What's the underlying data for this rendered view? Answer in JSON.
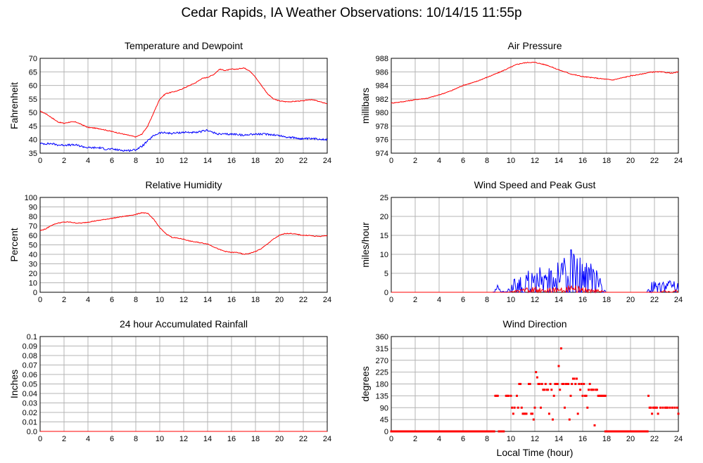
{
  "page": {
    "title": "Cedar Rapids, IA Weather Observations: 10/14/15 11:55p",
    "xlabel_bottom": "Local Time (hour)"
  },
  "colors": {
    "red": "#ff0000",
    "blue": "#0000ff",
    "grid": "#b4b4b4"
  },
  "chart_data": [
    {
      "id": "temp",
      "type": "line",
      "title": "Temperature and Dewpoint",
      "xlabel": "",
      "ylabel": "Fahrenheit",
      "xlim": [
        0,
        24
      ],
      "ylim": [
        35,
        70
      ],
      "xticks": [
        0,
        2,
        4,
        6,
        8,
        10,
        12,
        14,
        16,
        18,
        20,
        22,
        24
      ],
      "yticks": [
        "35",
        "40",
        "45",
        "50",
        "55",
        "60",
        "65",
        "70"
      ],
      "grid": true,
      "series": [
        {
          "color": "#ff0000",
          "noise": 0.15,
          "x": [
            0,
            0.5,
            1,
            1.5,
            2,
            2.5,
            3,
            3.5,
            4,
            4.5,
            5,
            5.5,
            6,
            6.5,
            7,
            7.5,
            8,
            8.5,
            9,
            9.5,
            10,
            10.5,
            11,
            11.5,
            12,
            12.5,
            13,
            13.5,
            14,
            14.5,
            15,
            15.5,
            16,
            16.5,
            17,
            17.5,
            18,
            18.5,
            19,
            19.5,
            20,
            20.5,
            21,
            21.5,
            22,
            22.5,
            23,
            23.5,
            24
          ],
          "values": [
            50.5,
            49.5,
            48,
            46.5,
            46,
            46.5,
            46.5,
            45.5,
            44.5,
            44.3,
            44,
            43.5,
            43,
            42.5,
            42,
            41.5,
            41,
            42,
            45,
            50,
            55,
            57,
            57.5,
            58,
            59,
            60,
            61,
            62.5,
            63,
            64,
            66,
            65.5,
            66,
            66,
            66.5,
            65.5,
            63,
            60,
            57,
            55,
            54.3,
            54,
            54,
            54.2,
            54.3,
            54.8,
            54.5,
            53.8,
            53.3
          ]
        },
        {
          "color": "#0000ff",
          "noise": 0.35,
          "x": [
            0,
            0.5,
            1,
            1.5,
            2,
            2.5,
            3,
            3.5,
            4,
            4.5,
            5,
            5.5,
            6,
            6.5,
            7,
            7.5,
            8,
            8.5,
            9,
            9.5,
            10,
            10.5,
            11,
            11.5,
            12,
            12.5,
            13,
            13.5,
            14,
            14.5,
            15,
            15.5,
            16,
            16.5,
            17,
            17.5,
            18,
            18.5,
            19,
            19.5,
            20,
            20.5,
            21,
            21.5,
            22,
            22.5,
            23,
            23.5,
            24
          ],
          "values": [
            38.5,
            38.5,
            38.5,
            38,
            38,
            38,
            38,
            37.5,
            37,
            37,
            37,
            36.5,
            36.5,
            36.2,
            36,
            36,
            36.3,
            37.5,
            39.5,
            41.5,
            42.5,
            42.5,
            42.3,
            42.5,
            42.7,
            42.7,
            42.5,
            43,
            43.5,
            42.5,
            42,
            42,
            42,
            42,
            41.5,
            42,
            42,
            42,
            42,
            41.8,
            41.5,
            41,
            40.8,
            40.5,
            40.3,
            40.3,
            40.3,
            40.2,
            40
          ]
        }
      ]
    },
    {
      "id": "pres",
      "type": "line",
      "title": "Air Pressure",
      "xlabel": "",
      "ylabel": "millibars",
      "xlim": [
        0,
        24
      ],
      "ylim": [
        974,
        988
      ],
      "xticks": [
        0,
        2,
        4,
        6,
        8,
        10,
        12,
        14,
        16,
        18,
        20,
        22,
        24
      ],
      "yticks": [
        "974",
        "976",
        "978",
        "980",
        "982",
        "984",
        "986",
        "988"
      ],
      "grid": true,
      "series": [
        {
          "color": "#ff0000",
          "noise": 0.06,
          "x": [
            0,
            1,
            2,
            3,
            4,
            5,
            6,
            7,
            8,
            9,
            10,
            10.5,
            11,
            11.5,
            12,
            12.5,
            13,
            14,
            15,
            16,
            17,
            18,
            18.5,
            19,
            20,
            21,
            21.5,
            22,
            22.5,
            23,
            23.5,
            24
          ],
          "values": [
            981.4,
            981.6,
            981.9,
            982.1,
            982.6,
            983.2,
            984,
            984.5,
            985.2,
            985.9,
            986.7,
            987.1,
            987.3,
            987.4,
            987.4,
            987.2,
            987,
            986.3,
            985.7,
            985.3,
            985.1,
            984.9,
            984.8,
            985,
            985.4,
            985.7,
            985.9,
            986,
            986,
            985.9,
            985.8,
            986
          ]
        }
      ]
    },
    {
      "id": "rh",
      "type": "line",
      "title": "Relative Humidity",
      "xlabel": "",
      "ylabel": "Percent",
      "xlim": [
        0,
        24
      ],
      "ylim": [
        0,
        100
      ],
      "xticks": [
        0,
        2,
        4,
        6,
        8,
        10,
        12,
        14,
        16,
        18,
        20,
        22,
        24
      ],
      "yticks": [
        "0",
        "10",
        "20",
        "30",
        "40",
        "50",
        "60",
        "70",
        "80",
        "90",
        "100"
      ],
      "grid": true,
      "series": [
        {
          "color": "#ff0000",
          "noise": 0.4,
          "x": [
            0,
            0.5,
            1,
            1.5,
            2,
            2.5,
            3,
            3.5,
            4,
            4.5,
            5,
            5.5,
            6,
            6.5,
            7,
            7.5,
            8,
            8.5,
            9,
            9.5,
            10,
            10.5,
            11,
            11.5,
            12,
            12.5,
            13,
            13.5,
            14,
            14.5,
            15,
            15.5,
            16,
            16.5,
            17,
            17.5,
            18,
            18.5,
            19,
            19.5,
            20,
            20.5,
            21,
            21.5,
            22,
            22.5,
            23,
            23.5,
            24
          ],
          "values": [
            65,
            67,
            71,
            73,
            74,
            74,
            73,
            73,
            74,
            75,
            76,
            77,
            78,
            79,
            80,
            81,
            82,
            84,
            83,
            77,
            68,
            62,
            58,
            57,
            56,
            54,
            53,
            52,
            51,
            48,
            45,
            43,
            42,
            42,
            40,
            41,
            43,
            46,
            51,
            56,
            60,
            62,
            62,
            61,
            60,
            60,
            59,
            59,
            60
          ]
        }
      ]
    },
    {
      "id": "wind",
      "type": "line",
      "title": "Wind Speed and Peak Gust",
      "xlabel": "",
      "ylabel": "miles/hour",
      "xlim": [
        0,
        24
      ],
      "ylim": [
        0,
        25
      ],
      "xticks": [
        0,
        2,
        4,
        6,
        8,
        10,
        12,
        14,
        16,
        18,
        20,
        22,
        24
      ],
      "yticks": [
        "0",
        "5",
        "10",
        "15",
        "20",
        "25"
      ],
      "grid": true,
      "series": [
        {
          "color": "#0000ff",
          "spiky": true,
          "x": [
            0,
            8.5,
            8.7,
            8.9,
            9.2,
            9.5,
            10,
            10.5,
            11,
            11.5,
            12,
            12.5,
            13,
            13.5,
            14,
            14.5,
            15,
            15.5,
            16,
            16.5,
            17,
            17.5,
            18,
            21.4,
            21.5,
            21.8,
            22.2,
            22.5,
            23,
            23.5,
            24
          ],
          "values": [
            0,
            0,
            1,
            2,
            0.5,
            0,
            2,
            3.5,
            4,
            5,
            5.5,
            6,
            5.5,
            6.5,
            7.5,
            8,
            10,
            9,
            7,
            6.5,
            5.5,
            3,
            0,
            0,
            1.5,
            2.2,
            2.5,
            3,
            2.5,
            2.5,
            2
          ]
        },
        {
          "color": "#ff0000",
          "spiky": true,
          "x": [
            0,
            9.8,
            10.2,
            10.5,
            11,
            11.5,
            12,
            12.5,
            13,
            13.5,
            14,
            14.5,
            15,
            15.5,
            16,
            16.5,
            17,
            17.5,
            17.9,
            22.5,
            22.8,
            23.2,
            23.5,
            23.8,
            24
          ],
          "values": [
            0,
            0,
            0.3,
            0.6,
            0.9,
            1.2,
            1.2,
            1,
            1,
            1.1,
            1.2,
            1.1,
            1.6,
            1.4,
            1.1,
            1,
            0.8,
            0.6,
            0,
            0,
            0.4,
            0.2,
            0,
            0.7,
            0.3
          ]
        }
      ]
    },
    {
      "id": "rain",
      "type": "line",
      "title": "24 hour Accumulated Rainfall",
      "xlabel": "",
      "ylabel": "Inches",
      "xlim": [
        0,
        24
      ],
      "ylim": [
        0,
        0.1
      ],
      "xticks": [
        0,
        2,
        4,
        6,
        8,
        10,
        12,
        14,
        16,
        18,
        20,
        22,
        24
      ],
      "yticks": [
        "0.0",
        "0.01",
        "0.02",
        "0.03",
        "0.04",
        "0.05",
        "0.06",
        "0.07",
        "0.08",
        "0.09",
        "0.1"
      ],
      "grid": true,
      "series": [
        {
          "color": "#ff0000",
          "x": [
            0,
            24
          ],
          "values": [
            0,
            0
          ]
        }
      ]
    },
    {
      "id": "wdir",
      "type": "scatter",
      "title": "Wind Direction",
      "xlabel": "Local Time (hour)",
      "ylabel": "degrees",
      "xlim": [
        0,
        24
      ],
      "ylim": [
        0,
        360
      ],
      "xticks": [
        0,
        2,
        4,
        6,
        8,
        10,
        12,
        14,
        16,
        18,
        20,
        22,
        24
      ],
      "yticks": [
        "0",
        "45",
        "90",
        "135",
        "180",
        "225",
        "270",
        "315",
        "360"
      ],
      "grid": true,
      "series": [
        {
          "color": "#ff0000",
          "x": [
            8.7,
            8.8,
            8.9,
            9.0,
            9.4,
            9.6,
            9.7,
            9.8,
            10.0,
            10.1,
            10.2,
            10.3,
            10.5,
            10.6,
            10.7,
            10.8,
            10.9,
            11.0,
            11.1,
            11.2,
            11.3,
            11.5,
            11.6,
            11.7,
            11.8,
            11.9,
            12.0,
            12.1,
            12.2,
            12.3,
            12.4,
            12.5,
            12.6,
            12.7,
            12.8,
            12.9,
            13.0,
            13.1,
            13.2,
            13.3,
            13.4,
            13.5,
            13.6,
            13.7,
            13.8,
            13.9,
            14.0,
            14.1,
            14.2,
            14.3,
            14.4,
            14.5,
            14.6,
            14.7,
            14.8,
            14.9,
            15.0,
            15.1,
            15.2,
            15.3,
            15.4,
            15.5,
            15.6,
            15.7,
            15.8,
            15.9,
            16.0,
            16.1,
            16.2,
            16.3,
            16.4,
            16.5,
            16.6,
            16.7,
            16.8,
            16.9,
            17.0,
            17.1,
            17.2,
            17.3,
            17.4,
            17.5,
            17.6,
            17.7,
            17.8,
            17.9,
            21.5,
            21.6,
            21.7,
            21.8,
            21.9,
            22.0,
            22.1,
            22.2,
            22.3,
            22.5,
            22.7,
            22.9,
            23.0,
            23.1,
            23.3,
            23.5,
            23.7,
            23.9,
            24.0
          ],
          "values": [
            135,
            135,
            135,
            0,
            0,
            135,
            135,
            135,
            135,
            90,
            67,
            90,
            135,
            90,
            180,
            180,
            90,
            67,
            67,
            67,
            67,
            180,
            180,
            67,
            67,
            45,
            90,
            225,
            205,
            180,
            180,
            90,
            180,
            158,
            158,
            180,
            158,
            158,
            67,
            180,
            158,
            45,
            135,
            180,
            180,
            180,
            248,
            158,
            315,
            180,
            180,
            90,
            180,
            180,
            180,
            45,
            135,
            180,
            200,
            200,
            180,
            200,
            67,
            180,
            158,
            180,
            135,
            180,
            135,
            135,
            90,
            158,
            180,
            158,
            158,
            158,
            23,
            158,
            158,
            135,
            135,
            135,
            135,
            135,
            135,
            135,
            135,
            90,
            90,
            67,
            90,
            90,
            90,
            90,
            67,
            90,
            90,
            90,
            90,
            90,
            90,
            90,
            90,
            90,
            67
          ]
        }
      ]
    }
  ]
}
